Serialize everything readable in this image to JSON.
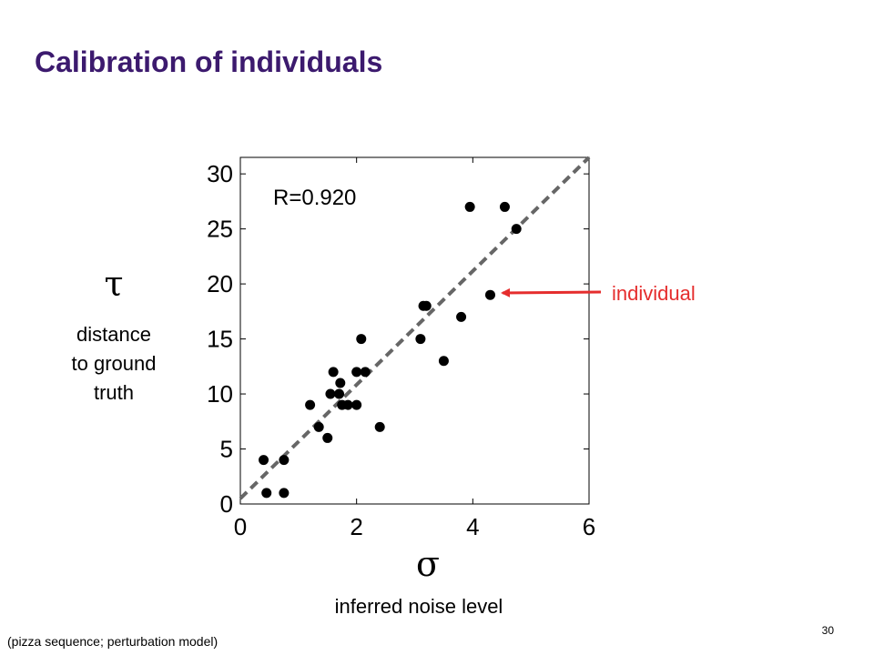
{
  "slide": {
    "title": "Calibration of individuals",
    "footnote": "(pizza sequence; perturbation model)",
    "page_number": "30"
  },
  "y_axis": {
    "symbol": "τ",
    "description": [
      "distance",
      "to ground",
      "truth"
    ]
  },
  "x_axis": {
    "symbol": "σ",
    "description": "inferred noise level"
  },
  "callout": {
    "label": "individual",
    "color": "#e52d2d"
  },
  "colors": {
    "title": "#3c1a6e",
    "fit_line": "#666666",
    "points": "#000000"
  },
  "chart_data": {
    "type": "scatter",
    "annotation": "R=0.920",
    "xlim": [
      0,
      6
    ],
    "ylim": [
      0,
      31.5
    ],
    "x_ticks": [
      0,
      2,
      4,
      6
    ],
    "y_ticks": [
      0,
      5,
      10,
      15,
      20,
      25,
      30
    ],
    "grid": false,
    "points": [
      {
        "x": 0.4,
        "y": 4
      },
      {
        "x": 0.45,
        "y": 1
      },
      {
        "x": 0.75,
        "y": 1
      },
      {
        "x": 0.75,
        "y": 4
      },
      {
        "x": 1.2,
        "y": 9
      },
      {
        "x": 1.35,
        "y": 7
      },
      {
        "x": 1.5,
        "y": 6
      },
      {
        "x": 1.55,
        "y": 10
      },
      {
        "x": 1.6,
        "y": 12
      },
      {
        "x": 1.7,
        "y": 10
      },
      {
        "x": 1.72,
        "y": 11
      },
      {
        "x": 1.75,
        "y": 9
      },
      {
        "x": 1.85,
        "y": 9
      },
      {
        "x": 2.0,
        "y": 9
      },
      {
        "x": 2.0,
        "y": 12
      },
      {
        "x": 2.08,
        "y": 15
      },
      {
        "x": 2.15,
        "y": 12
      },
      {
        "x": 2.4,
        "y": 7
      },
      {
        "x": 3.1,
        "y": 15
      },
      {
        "x": 3.15,
        "y": 18
      },
      {
        "x": 3.2,
        "y": 18
      },
      {
        "x": 3.5,
        "y": 13
      },
      {
        "x": 3.8,
        "y": 17
      },
      {
        "x": 3.95,
        "y": 27
      },
      {
        "x": 4.3,
        "y": 19,
        "highlight": true
      },
      {
        "x": 4.55,
        "y": 27
      },
      {
        "x": 4.75,
        "y": 25
      }
    ],
    "fit_line": {
      "x": [
        0,
        6
      ],
      "y": [
        0.5,
        31.5
      ],
      "style": "dashed"
    }
  }
}
